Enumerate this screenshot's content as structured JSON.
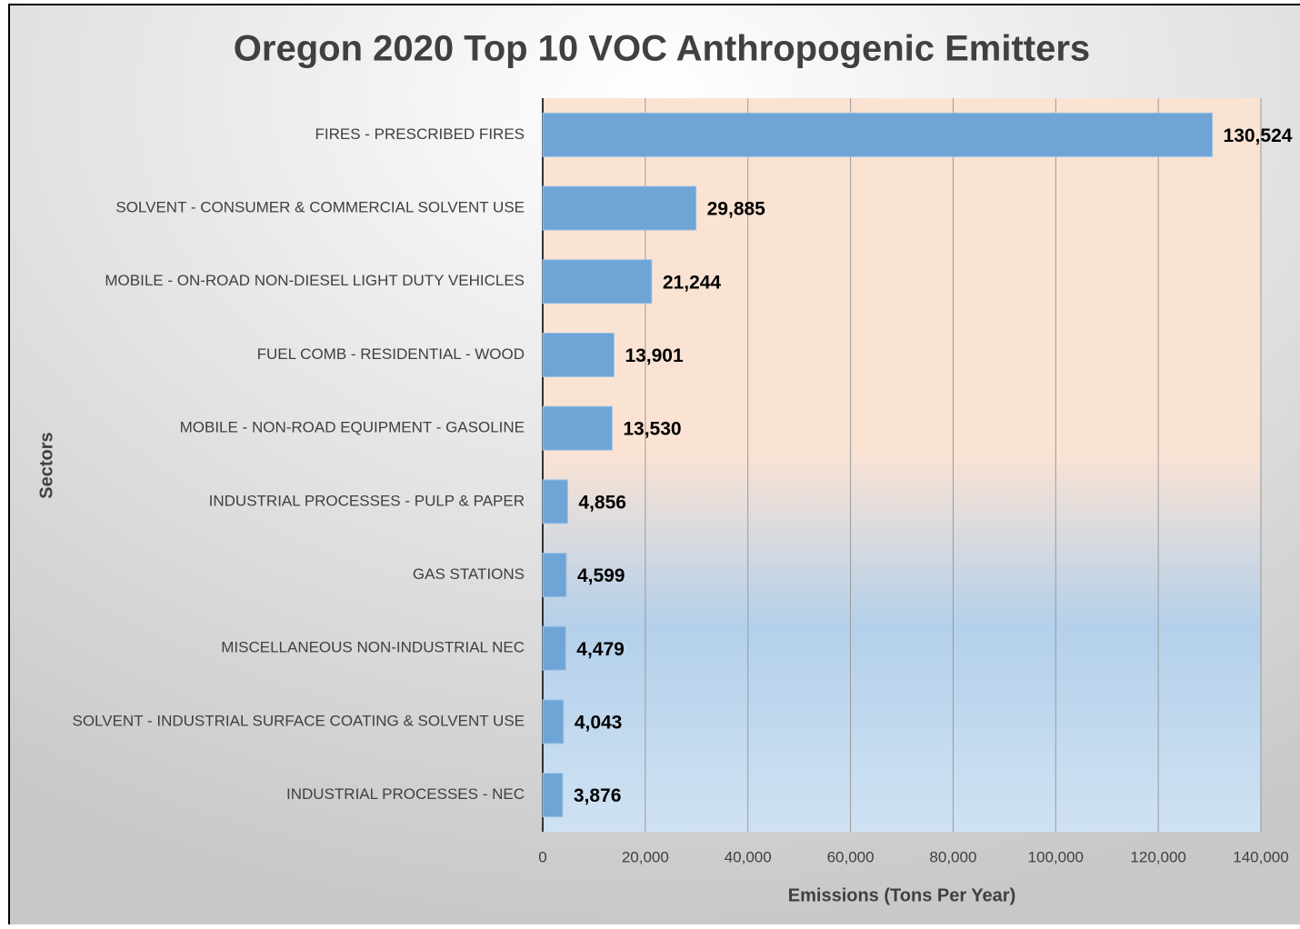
{
  "chart_data": {
    "type": "bar",
    "orientation": "horizontal",
    "title": "Oregon 2020 Top 10 VOC Anthropogenic Emitters",
    "x_label": "Emissions (Tons Per Year)",
    "y_label": "Sectors",
    "categories": [
      "FIRES - PRESCRIBED FIRES",
      "SOLVENT - CONSUMER & COMMERCIAL SOLVENT USE",
      "MOBILE - ON-ROAD NON-DIESEL LIGHT DUTY VEHICLES",
      "FUEL COMB - RESIDENTIAL - WOOD",
      "MOBILE - NON-ROAD EQUIPMENT - GASOLINE",
      "INDUSTRIAL PROCESSES - PULP & PAPER",
      "GAS STATIONS",
      "MISCELLANEOUS NON-INDUSTRIAL NEC",
      "SOLVENT - INDUSTRIAL SURFACE COATING & SOLVENT USE",
      "INDUSTRIAL PROCESSES - NEC"
    ],
    "values": [
      130524,
      29885,
      21244,
      13901,
      13530,
      4856,
      4599,
      4479,
      4043,
      3876
    ],
    "value_labels": [
      "130,524",
      "29,885",
      "21,244",
      "13,901",
      "13,530",
      "4,856",
      "4,599",
      "4,479",
      "4,043",
      "3,876"
    ],
    "color": "#6fa5d6",
    "xlim": [
      0,
      140000
    ],
    "xticks": [
      0,
      {
        "value": 20000,
        "label": "20,000"
      },
      {
        "value": 40000,
        "label": "40,000"
      },
      {
        "value": 60000,
        "label": "60,000"
      },
      {
        "value": 80000,
        "label": "80,000"
      },
      {
        "value": 100000,
        "label": "100,000"
      },
      {
        "value": 120000,
        "label": "120,000"
      },
      {
        "value": 140000,
        "label": "140,000"
      }
    ],
    "grid": true
  }
}
